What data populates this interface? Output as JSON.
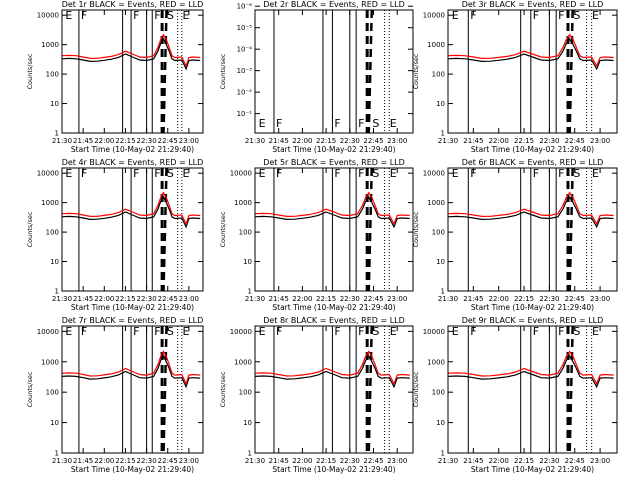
{
  "figure": {
    "x_axis_label": "Start Time (10-May-02 21:29:40)",
    "y_axis_label": "Counts/sec",
    "x_tick_labels": [
      "21:30",
      "21:45",
      "22:00",
      "22:15",
      "22:30",
      "22:45",
      "23:00"
    ],
    "colors": {
      "events": "#000000",
      "lld": "#ff0000",
      "background": "#ffffff"
    }
  },
  "chart_data": [
    {
      "type": "line",
      "title": "Det 1r BLACK = Events, RED = LLD",
      "scale": "log",
      "ylim": [
        1,
        15000
      ],
      "ytick_labels": [
        "1",
        "10",
        "100",
        "1000",
        "10000"
      ],
      "xlim": [
        "21:30",
        "23:10"
      ],
      "curve": "standard",
      "markers": [
        "E",
        "F",
        "F",
        "F",
        "S",
        "E"
      ]
    },
    {
      "type": "line",
      "title": "Det 2r BLACK = Events, RED = LLD",
      "scale": "log",
      "ylim": [
        0.8,
        1.5e-06
      ],
      "ytick_labels": [
        "10⁻¹",
        "10⁻²",
        "10⁻³",
        "10⁻⁴",
        "10⁻⁵",
        "10⁻⁶"
      ],
      "xlim": [
        "21:30",
        "23:10"
      ],
      "curve": "none",
      "markers": [
        "E",
        "F",
        "F",
        "F",
        "S",
        "E"
      ]
    },
    {
      "type": "line",
      "title": "Det 3r BLACK = Events, RED = LLD",
      "scale": "log",
      "ylim": [
        1,
        15000
      ],
      "ytick_labels": [
        "1",
        "10",
        "100",
        "1000",
        "10000"
      ],
      "xlim": [
        "21:30",
        "23:10"
      ],
      "curve": "standard",
      "markers": [
        "E",
        "F",
        "F",
        "F",
        "S",
        "E"
      ]
    },
    {
      "type": "line",
      "title": "Det 4r BLACK = Events, RED = LLD",
      "scale": "log",
      "ylim": [
        1,
        15000
      ],
      "ytick_labels": [
        "1",
        "10",
        "100",
        "1000",
        "10000"
      ],
      "xlim": [
        "21:30",
        "23:10"
      ],
      "curve": "standard",
      "markers": [
        "E",
        "F",
        "F",
        "F",
        "S",
        "E"
      ]
    },
    {
      "type": "line",
      "title": "Det 5r BLACK = Events, RED = LLD",
      "scale": "log",
      "ylim": [
        1,
        15000
      ],
      "ytick_labels": [
        "1",
        "10",
        "100",
        "1000",
        "10000"
      ],
      "xlim": [
        "21:30",
        "23:10"
      ],
      "curve": "standard",
      "markers": [
        "E",
        "F",
        "F",
        "F",
        "S",
        "E"
      ]
    },
    {
      "type": "line",
      "title": "Det 6r BLACK = Events, RED = LLD",
      "scale": "log",
      "ylim": [
        1,
        15000
      ],
      "ytick_labels": [
        "1",
        "10",
        "100",
        "1000",
        "10000"
      ],
      "xlim": [
        "21:30",
        "23:10"
      ],
      "curve": "standard",
      "markers": [
        "E",
        "F",
        "F",
        "F",
        "S",
        "E"
      ]
    },
    {
      "type": "line",
      "title": "Det 7r BLACK = Events, RED = LLD",
      "scale": "log",
      "ylim": [
        1,
        15000
      ],
      "ytick_labels": [
        "1",
        "10",
        "100",
        "1000",
        "10000"
      ],
      "xlim": [
        "21:30",
        "23:10"
      ],
      "curve": "standard",
      "markers": [
        "E",
        "F",
        "F",
        "F",
        "S",
        "E"
      ]
    },
    {
      "type": "line",
      "title": "Det 8r BLACK = Events, RED = LLD",
      "scale": "log",
      "ylim": [
        1,
        15000
      ],
      "ytick_labels": [
        "1",
        "10",
        "100",
        "1000",
        "10000"
      ],
      "xlim": [
        "21:30",
        "23:10"
      ],
      "curve": "standard",
      "markers": [
        "E",
        "F",
        "F",
        "F",
        "S",
        "E"
      ]
    },
    {
      "type": "line",
      "title": "Det 9r BLACK = Events, RED = LLD",
      "scale": "log",
      "ylim": [
        1,
        15000
      ],
      "ytick_labels": [
        "1",
        "10",
        "100",
        "1000",
        "10000"
      ],
      "xlim": [
        "21:30",
        "23:10"
      ],
      "curve": "standard",
      "markers": [
        "E",
        "F",
        "F",
        "F",
        "S",
        "E"
      ]
    }
  ],
  "series_values": {
    "x": [
      "21:30",
      "21:35",
      "21:40",
      "21:45",
      "21:50",
      "21:55",
      "22:00",
      "22:05",
      "22:10",
      "22:15",
      "22:20",
      "22:25",
      "22:30",
      "22:35",
      "22:38",
      "22:40",
      "22:42",
      "22:44",
      "22:46",
      "22:48",
      "22:50",
      "22:55",
      "22:58",
      "23:00",
      "23:03",
      "23:08"
    ],
    "events": [
      330,
      340,
      330,
      300,
      270,
      275,
      295,
      320,
      370,
      480,
      380,
      300,
      290,
      330,
      600,
      1100,
      1500,
      1000,
      600,
      330,
      290,
      300,
      150,
      290,
      300,
      290
    ],
    "lld": [
      420,
      430,
      420,
      380,
      340,
      345,
      370,
      400,
      460,
      600,
      480,
      380,
      365,
      420,
      800,
      1500,
      2200,
      1500,
      800,
      420,
      365,
      380,
      190,
      365,
      380,
      365
    ]
  }
}
